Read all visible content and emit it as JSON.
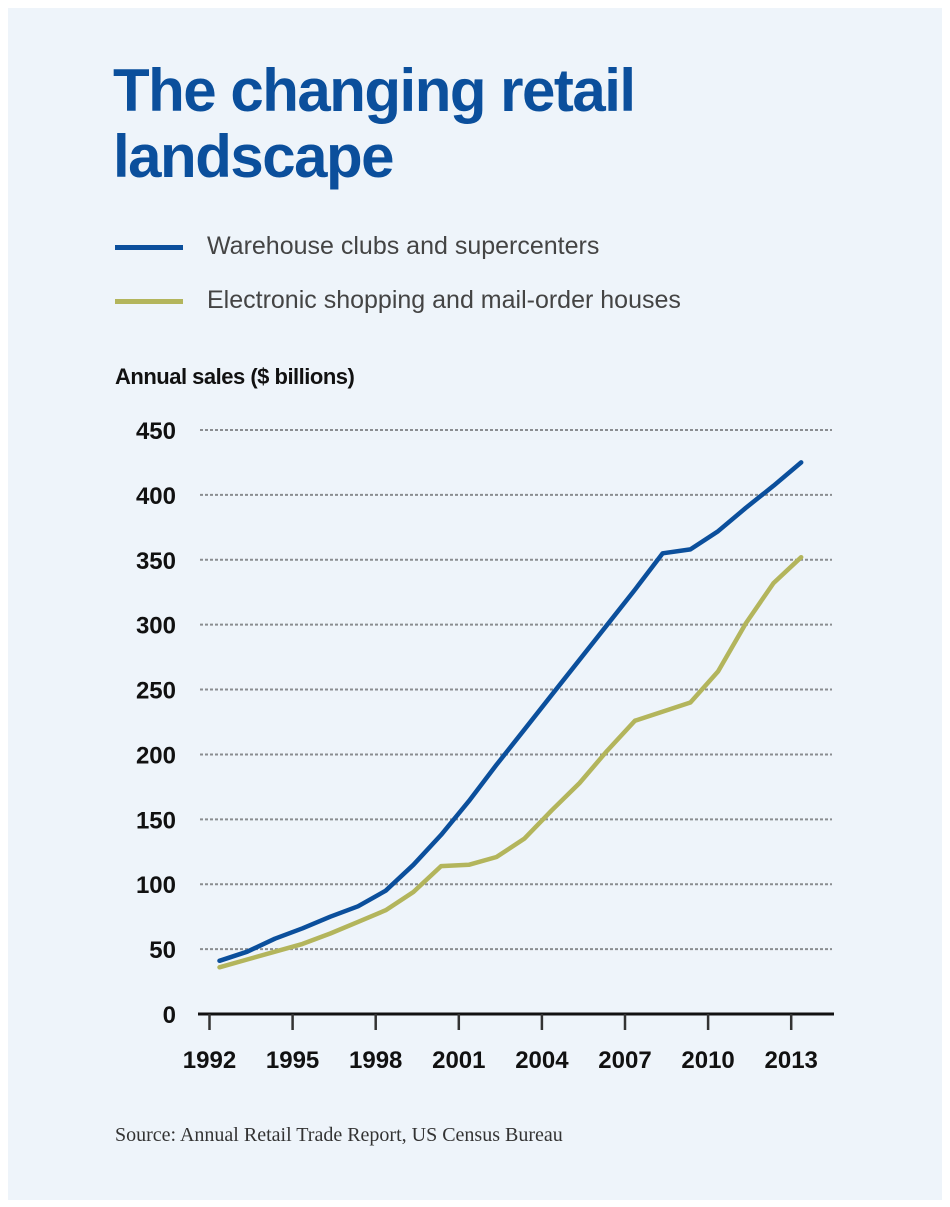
{
  "title": "The changing retail landscape",
  "legend": [
    {
      "label": "Warehouse clubs and supercenters",
      "color": "#0b4f9c"
    },
    {
      "label": "Electronic shopping and mail-order houses",
      "color": "#b3b55c"
    }
  ],
  "source": "Source: Annual Retail Trade Report, US Census Bureau",
  "chart_data": {
    "type": "line",
    "title": "The changing retail landscape",
    "ylabel": "Annual sales ($ billions)",
    "xlabel": "",
    "ylim": [
      0,
      450
    ],
    "yticks": [
      0,
      50,
      100,
      150,
      200,
      250,
      300,
      350,
      400,
      450
    ],
    "xticks": [
      1992,
      1995,
      1998,
      2001,
      2004,
      2007,
      2010,
      2013
    ],
    "grid": "horizontal dotted",
    "legend_placement": "top",
    "x": [
      1992,
      1993,
      1994,
      1995,
      1996,
      1997,
      1998,
      1999,
      2000,
      2001,
      2002,
      2003,
      2004,
      2005,
      2006,
      2007,
      2008,
      2009,
      2010,
      2011,
      2012,
      2013
    ],
    "series": [
      {
        "name": "Warehouse clubs and supercenters",
        "color": "#0b4f9c",
        "values": [
          41,
          48,
          58,
          66,
          75,
          83,
          95,
          115,
          138,
          164,
          192,
          219,
          246,
          273,
          300,
          327,
          355,
          358,
          372,
          390,
          407,
          425
        ]
      },
      {
        "name": "Electronic shopping and mail-order houses",
        "color": "#b3b55c",
        "values": [
          36,
          42,
          48,
          54,
          62,
          71,
          80,
          94,
          114,
          115,
          121,
          135,
          157,
          178,
          203,
          226,
          233,
          240,
          264,
          301,
          332,
          352
        ]
      }
    ]
  }
}
